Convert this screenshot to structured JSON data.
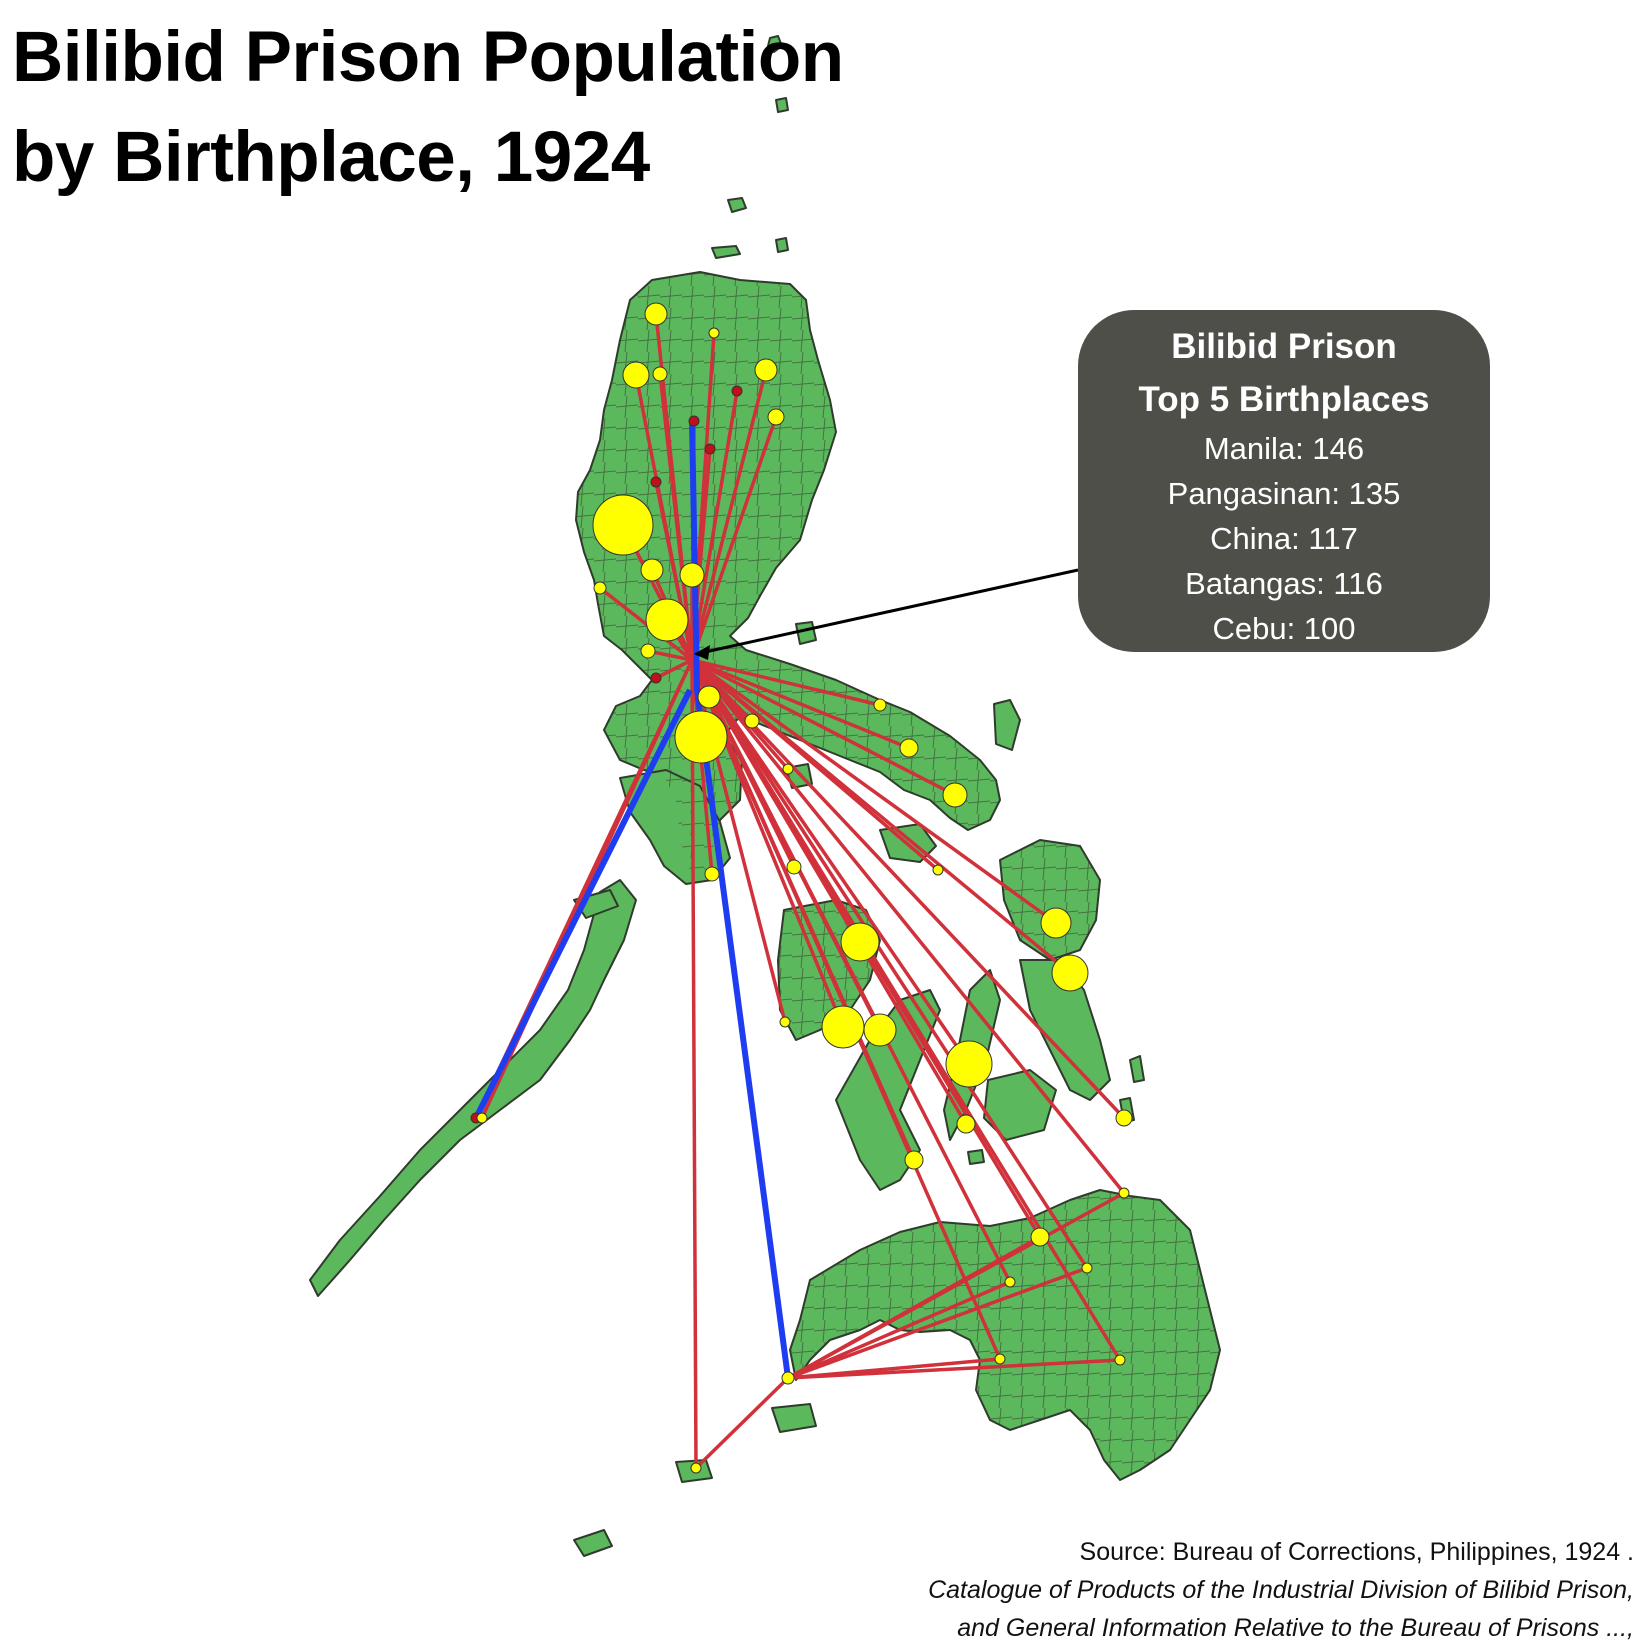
{
  "title": {
    "line1": "Bilibid Prison Population",
    "line2": "by Birthplace, 1924"
  },
  "callout": {
    "heading_line1": "Bilibid Prison",
    "heading_line2": "Top 5 Birthplaces",
    "items": [
      "Manila: 146",
      "Pangasinan: 135",
      "China: 117",
      "Batangas: 116",
      "Cebu: 100"
    ]
  },
  "source": {
    "line1": "Source: Bureau of Corrections, Philippines, 1924 .",
    "line2": "Catalogue of Products of the Industrial Division of Bilibid Prison,",
    "line3": "and General Information Relative to the Bureau of Prisons ...,"
  },
  "colors": {
    "land": "#5cb85c",
    "land_border": "#2f3b2c",
    "flow_line": "#d0313a",
    "highlight_line": "#1f3df0",
    "birthplace_circle": "#ffff00",
    "small_marker": "#c0111b",
    "callout_bg": "#4f4f4a"
  }
}
